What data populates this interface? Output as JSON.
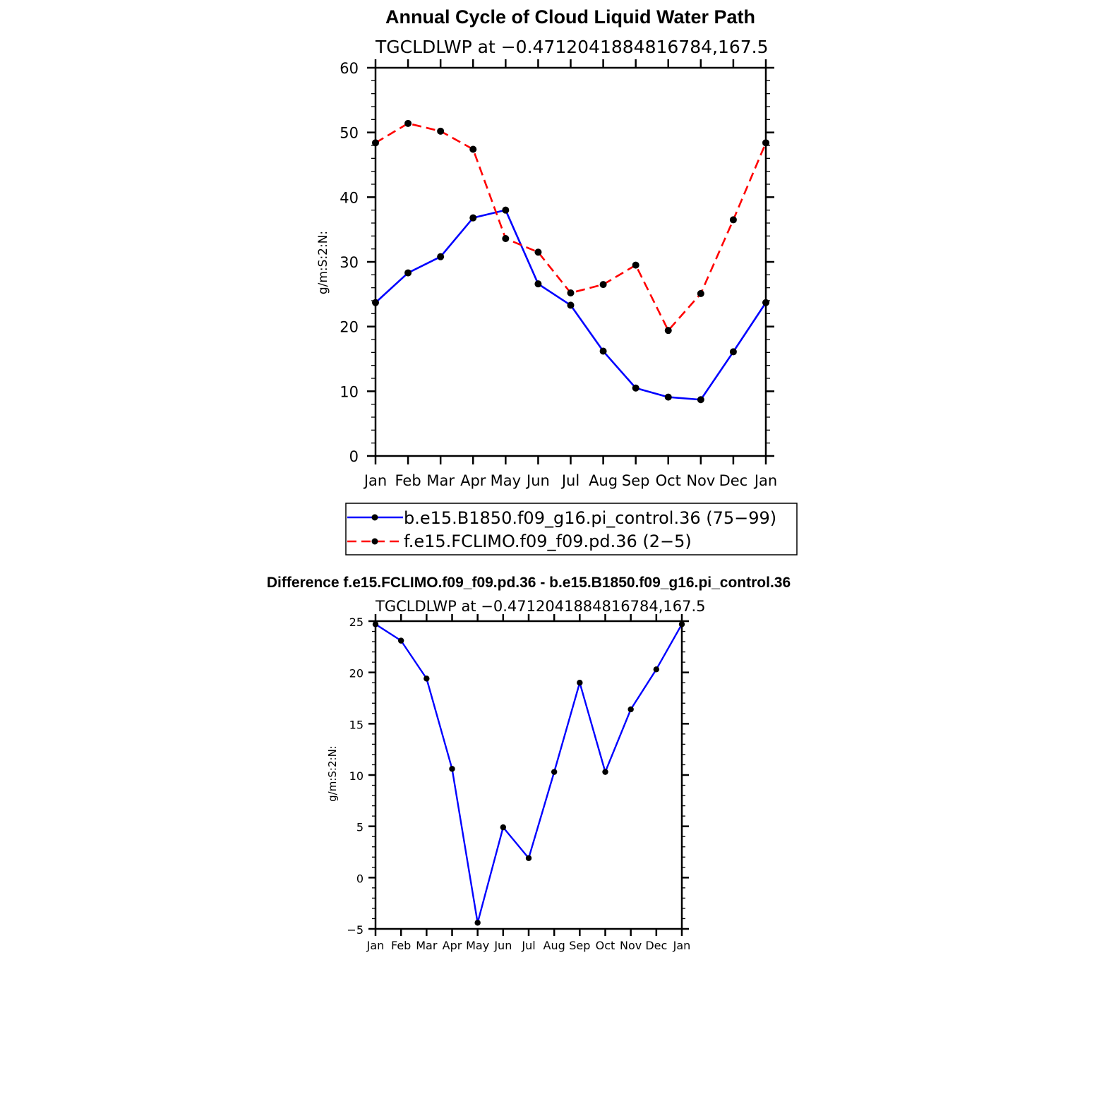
{
  "chart_data": [
    {
      "type": "line",
      "title": "Annual Cycle of Cloud Liquid Water Path",
      "subtitle": "TGCLDLWP at −0.4712041884816784,167.5",
      "xlabel": "",
      "ylabel": "g/m:S:2:N:",
      "categories": [
        "Jan",
        "Feb",
        "Mar",
        "Apr",
        "May",
        "Jun",
        "Jul",
        "Aug",
        "Sep",
        "Oct",
        "Nov",
        "Dec",
        "Jan"
      ],
      "ylim": [
        0,
        60
      ],
      "yticks": [
        0,
        10,
        20,
        30,
        40,
        50,
        60
      ],
      "ytick_labels": [
        "0",
        "10",
        "20",
        "30",
        "40",
        "50",
        "60"
      ],
      "series": [
        {
          "name": "b.e15.B1850.f09_g16.pi_control.36 (75−99)",
          "color": "#0000ff",
          "dash": "solid",
          "values": [
            23.7,
            28.3,
            30.8,
            36.8,
            38.0,
            26.6,
            23.3,
            16.2,
            10.5,
            9.1,
            8.7,
            16.1,
            23.7
          ]
        },
        {
          "name": "f.e15.FCLIMO.f09_f09.pd.36 (2−5)",
          "color": "#ff0000",
          "dash": "dashed",
          "values": [
            48.4,
            51.4,
            50.2,
            47.4,
            33.6,
            31.5,
            25.2,
            26.5,
            29.5,
            19.4,
            25.1,
            36.5,
            48.4
          ]
        }
      ],
      "legend": "below"
    },
    {
      "type": "line",
      "title": "Difference f.e15.FCLIMO.f09_f09.pd.36 - b.e15.B1850.f09_g16.pi_control.36",
      "subtitle": "TGCLDLWP at −0.4712041884816784,167.5",
      "xlabel": "",
      "ylabel": "g/m:S:2:N:",
      "categories": [
        "Jan",
        "Feb",
        "Mar",
        "Apr",
        "May",
        "Jun",
        "Jul",
        "Aug",
        "Sep",
        "Oct",
        "Nov",
        "Dec",
        "Jan"
      ],
      "ylim": [
        -5,
        25
      ],
      "yticks": [
        -5,
        0,
        5,
        10,
        15,
        20,
        25
      ],
      "ytick_labels": [
        "−5",
        "0",
        "5",
        "10",
        "15",
        "20",
        "25"
      ],
      "series": [
        {
          "name": "Difference",
          "color": "#0000ff",
          "dash": "solid",
          "values": [
            24.7,
            23.1,
            19.4,
            10.6,
            -4.4,
            4.9,
            1.9,
            10.3,
            19.0,
            10.3,
            16.4,
            20.3,
            24.7
          ]
        }
      ]
    }
  ]
}
